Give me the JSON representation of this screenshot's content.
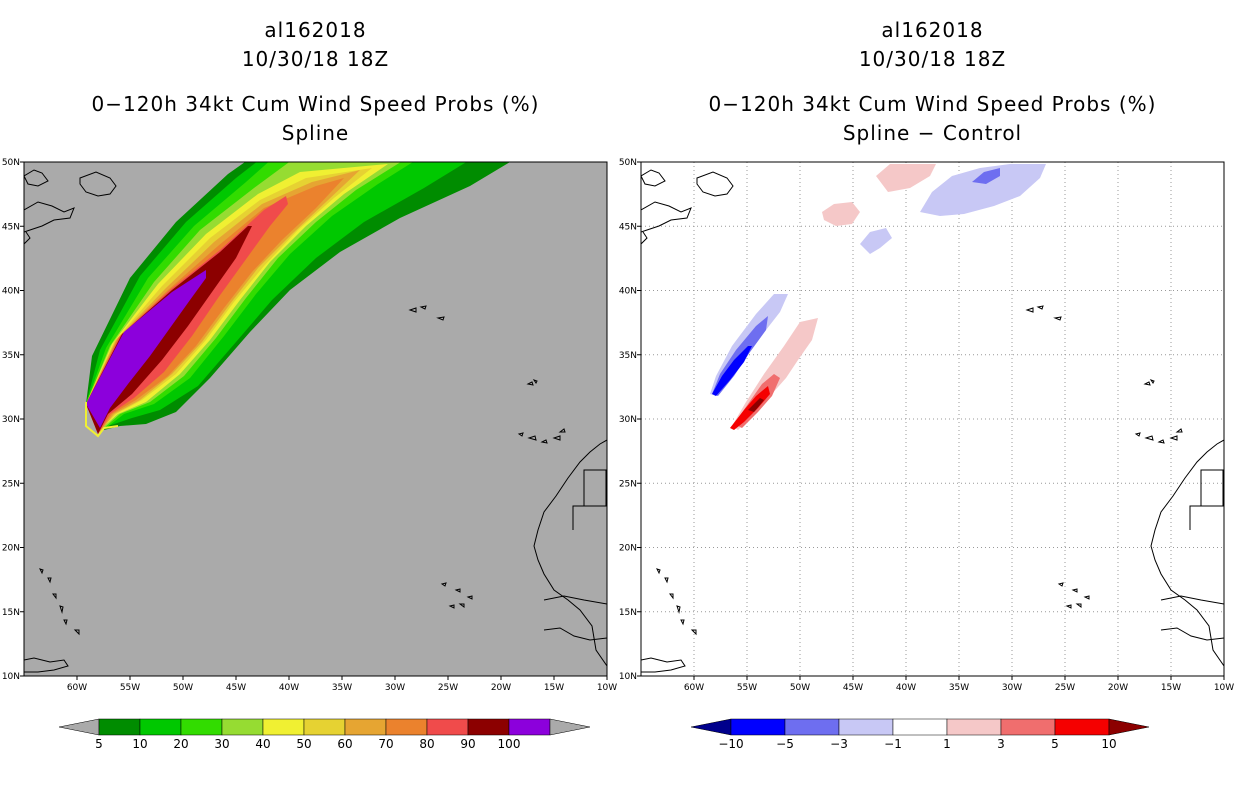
{
  "panels": [
    {
      "storm": "al162018",
      "datetime": "10/30/18 18Z",
      "product": "0−120h 34kt Cum Wind Speed Probs (%)",
      "subtitle": "Spline",
      "background": "#aaaaaa",
      "colorbar": {
        "labels": [
          "5",
          "10",
          "20",
          "30",
          "40",
          "50",
          "60",
          "70",
          "80",
          "90",
          "100"
        ],
        "colors": [
          "#008c00",
          "#00c800",
          "#32dc00",
          "#96dc32",
          "#f0f032",
          "#e6d232",
          "#e6a532",
          "#eb822d",
          "#f04b4b",
          "#8c0000",
          "#8c00dc"
        ],
        "low_arrow_color": "#aaaaaa",
        "high_arrow_color": "#aaaaaa"
      }
    },
    {
      "storm": "al162018",
      "datetime": "10/30/18 18Z",
      "product": "0−120h 34kt Cum Wind Speed Probs (%)",
      "subtitle": "Spline − Control",
      "background": "#ffffff",
      "colorbar": {
        "labels": [
          "−10",
          "−5",
          "−3",
          "−1",
          "1",
          "3",
          "5",
          "10"
        ],
        "colors": [
          "#0000ff",
          "#6e6ef0",
          "#c8c8f5",
          "#ffffff",
          "#f5c8c8",
          "#f06e6e",
          "#f50000"
        ],
        "low_arrow_color": "#00008c",
        "high_arrow_color": "#8c0000"
      }
    }
  ],
  "axes": {
    "lon_labels": [
      "60W",
      "55W",
      "50W",
      "45W",
      "40W",
      "35W",
      "30W",
      "25W",
      "20W",
      "15W",
      "10W"
    ],
    "lat_labels": [
      "10N",
      "15N",
      "20N",
      "25N",
      "30N",
      "35N",
      "40N",
      "45N",
      "50N"
    ],
    "lon_range": [
      -65,
      -10
    ],
    "lat_range": [
      10,
      50
    ]
  }
}
